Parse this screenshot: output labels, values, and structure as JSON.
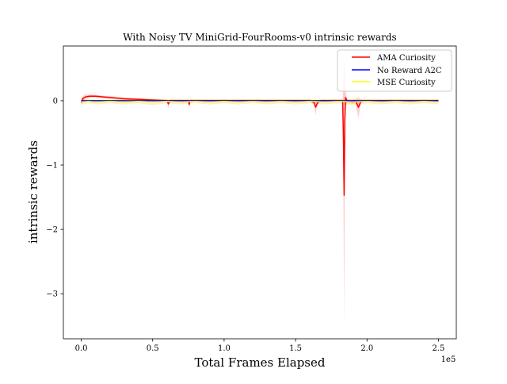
{
  "chart_data": {
    "type": "line",
    "title": "With Noisy TV MiniGrid-FourRooms-v0 intrinsic rewards",
    "xlabel": "Total Frames Elapsed",
    "ylabel": "intrinsic rewards",
    "x_offset_text": "1e5",
    "x_scale_multiplier": 100000,
    "xlim": [
      -12500,
      262500
    ],
    "ylim": [
      -3.7,
      0.85
    ],
    "x_ticks": [
      0,
      50000,
      100000,
      150000,
      200000,
      250000
    ],
    "x_tick_labels": [
      "0.0",
      "0.5",
      "1.0",
      "1.5",
      "2.0",
      "2.5"
    ],
    "y_ticks": [
      -3,
      -2,
      -1,
      0
    ],
    "y_tick_labels": [
      "−3",
      "−2",
      "−1",
      "0"
    ],
    "legend": {
      "placement": "top-right",
      "entries": [
        "AMA Curiosity",
        "No Reward A2C",
        "MSE Curiosity"
      ]
    },
    "grid": false,
    "series": [
      {
        "name": "AMA Curiosity",
        "color": "#ff0000",
        "band_color": "#ff0000",
        "x": [
          0,
          1000,
          3000,
          6000,
          10000,
          15000,
          20000,
          25000,
          30000,
          40000,
          50000,
          60000,
          61000,
          62000,
          75000,
          75600,
          76000,
          90000,
          110000,
          130000,
          150000,
          160000,
          163000,
          164000,
          165000,
          166000,
          168000,
          175000,
          180000,
          182000,
          183000,
          183500,
          184000,
          184500,
          185000,
          186000,
          188000,
          190000,
          192000,
          194000,
          195000,
          196000,
          198000,
          200000,
          205000,
          210000,
          220000,
          230000,
          240000,
          250000
        ],
        "y": [
          -0.03,
          0.03,
          0.06,
          0.07,
          0.07,
          0.06,
          0.05,
          0.04,
          0.03,
          0.02,
          0.01,
          0.0,
          -0.05,
          0.0,
          0.0,
          -0.06,
          0.0,
          0.0,
          0.0,
          0.0,
          0.0,
          0.0,
          -0.03,
          -0.1,
          -0.05,
          -0.02,
          0.0,
          0.0,
          0.0,
          0.0,
          -0.01,
          -0.6,
          -1.47,
          -0.3,
          0.05,
          0.0,
          -0.01,
          -0.02,
          0.0,
          -0.1,
          -0.05,
          0.0,
          0.0,
          0.0,
          0.0,
          0.0,
          0.0,
          0.0,
          0.0,
          0.0
        ],
        "band_lower": [
          -0.09,
          -0.01,
          0.03,
          0.05,
          0.05,
          0.04,
          0.03,
          0.02,
          0.01,
          0.0,
          -0.01,
          -0.02,
          -0.12,
          -0.02,
          -0.02,
          -0.12,
          -0.02,
          -0.02,
          -0.02,
          -0.02,
          -0.02,
          -0.02,
          -0.06,
          -0.22,
          -0.1,
          -0.04,
          -0.02,
          -0.02,
          -0.02,
          -0.02,
          -0.05,
          -1.5,
          -3.52,
          -1.0,
          -0.1,
          -0.03,
          -0.04,
          -0.05,
          -0.03,
          -0.28,
          -0.12,
          -0.03,
          -0.02,
          -0.02,
          -0.02,
          -0.02,
          -0.02,
          -0.02,
          -0.02,
          -0.02
        ],
        "band_upper": [
          0.03,
          0.07,
          0.1,
          0.1,
          0.09,
          0.08,
          0.07,
          0.06,
          0.05,
          0.04,
          0.03,
          0.02,
          0.01,
          0.02,
          0.02,
          0.01,
          0.02,
          0.02,
          0.02,
          0.02,
          0.02,
          0.02,
          0.0,
          0.02,
          0.01,
          0.01,
          0.02,
          0.02,
          0.02,
          0.02,
          0.03,
          0.3,
          0.62,
          0.4,
          0.15,
          0.03,
          0.02,
          0.02,
          0.03,
          0.05,
          0.03,
          0.02,
          0.02,
          0.02,
          0.02,
          0.02,
          0.02,
          0.02,
          0.02,
          0.02
        ]
      },
      {
        "name": "No Reward A2C",
        "color": "#0000ff",
        "x": [
          0,
          50000,
          100000,
          150000,
          200000,
          250000
        ],
        "y": [
          0.0,
          0.0,
          0.0,
          0.0,
          0.0,
          0.0
        ]
      },
      {
        "name": "MSE Curiosity",
        "color": "#ffff00",
        "band_color": "#ffa500",
        "x": [
          0,
          5000,
          10000,
          20000,
          30000,
          40000,
          50000,
          60000,
          70000,
          80000,
          90000,
          100000,
          110000,
          120000,
          130000,
          140000,
          150000,
          160000,
          170000,
          180000,
          190000,
          200000,
          210000,
          220000,
          230000,
          240000,
          250000
        ],
        "y": [
          -0.02,
          -0.01,
          -0.02,
          -0.01,
          -0.02,
          -0.01,
          -0.02,
          -0.01,
          -0.02,
          -0.01,
          -0.02,
          -0.01,
          -0.02,
          -0.01,
          -0.02,
          -0.01,
          -0.02,
          -0.01,
          -0.02,
          -0.01,
          -0.02,
          -0.01,
          -0.02,
          -0.01,
          -0.02,
          -0.01,
          -0.02
        ],
        "band_lower": [
          -0.06,
          -0.04,
          -0.06,
          -0.04,
          -0.06,
          -0.04,
          -0.07,
          -0.04,
          -0.06,
          -0.04,
          -0.06,
          -0.04,
          -0.06,
          -0.04,
          -0.06,
          -0.04,
          -0.06,
          -0.04,
          -0.06,
          -0.04,
          -0.07,
          -0.04,
          -0.06,
          -0.04,
          -0.06,
          -0.04,
          -0.06
        ],
        "band_upper": [
          0.02,
          0.02,
          0.02,
          0.02,
          0.02,
          0.02,
          0.02,
          0.02,
          0.02,
          0.02,
          0.02,
          0.02,
          0.02,
          0.02,
          0.02,
          0.02,
          0.02,
          0.02,
          0.02,
          0.02,
          0.02,
          0.02,
          0.02,
          0.02,
          0.02,
          0.02,
          0.02
        ]
      }
    ]
  }
}
